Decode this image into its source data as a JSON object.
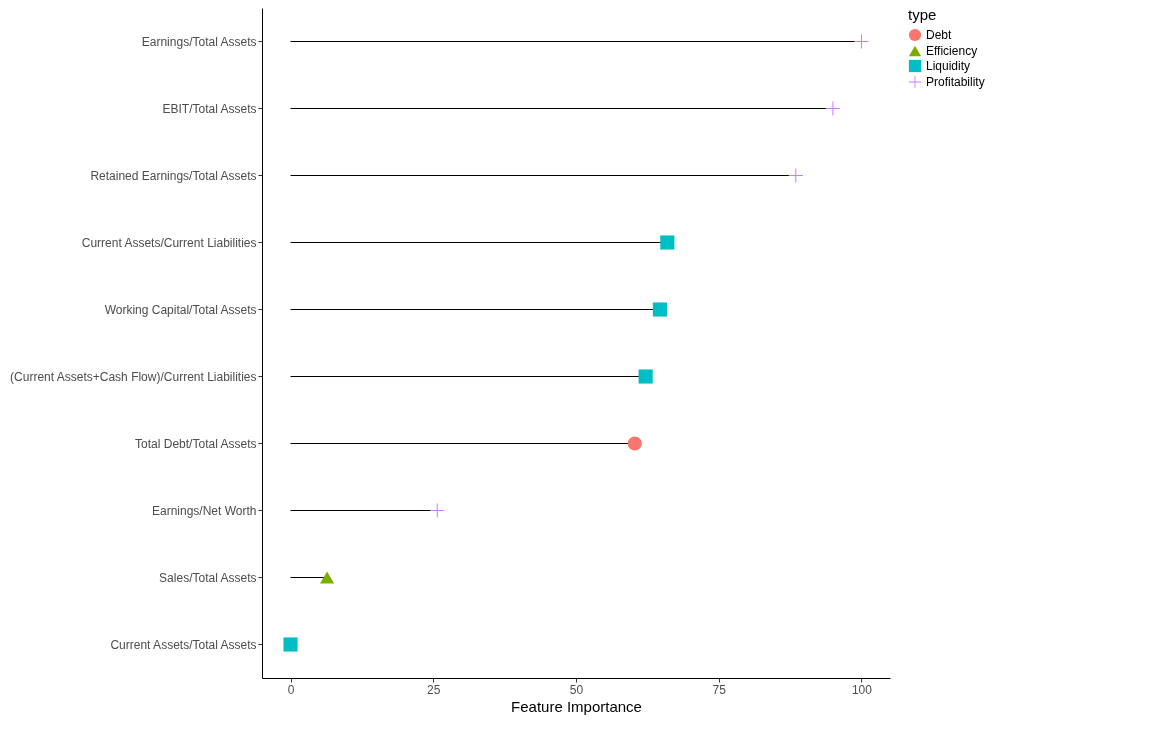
{
  "chart_data": {
    "type": "lollipop",
    "orientation": "horizontal",
    "xlabel": "Feature Importance",
    "legend_title": "type",
    "legend": "right",
    "categories": [
      "Earnings/Total Assets",
      "EBIT/Total Assets",
      "Retained Earnings/Total Assets",
      "Current Assets/Current Liabilities",
      "Working Capital/Total Assets",
      "(Current Assets+Cash Flow)/Current Liabilities",
      "Total Debt/Total Assets",
      "Earnings/Net Worth",
      "Sales/Total Assets",
      "Current Assets/Total Assets"
    ],
    "xlim": [
      -5,
      105
    ],
    "xticks": [
      0,
      25,
      50,
      75,
      100
    ],
    "series": [
      {
        "name": "Debt",
        "color": "#f8766d",
        "marker": "circle",
        "values": [
          null,
          null,
          null,
          null,
          null,
          null,
          60.3,
          null,
          null,
          null
        ]
      },
      {
        "name": "Efficiency",
        "color": "#7cae00",
        "marker": "triangle",
        "values": [
          null,
          null,
          null,
          null,
          null,
          null,
          null,
          null,
          6.4,
          null
        ]
      },
      {
        "name": "Liquidity",
        "color": "#00bfc4",
        "marker": "square",
        "values": [
          null,
          null,
          null,
          66,
          64.7,
          62.2,
          null,
          null,
          null,
          0
        ]
      },
      {
        "name": "Profitability",
        "color": "#c77cff",
        "marker": "cross",
        "values": [
          100,
          95,
          88.5,
          null,
          null,
          null,
          null,
          25.7,
          null,
          null
        ]
      }
    ]
  }
}
